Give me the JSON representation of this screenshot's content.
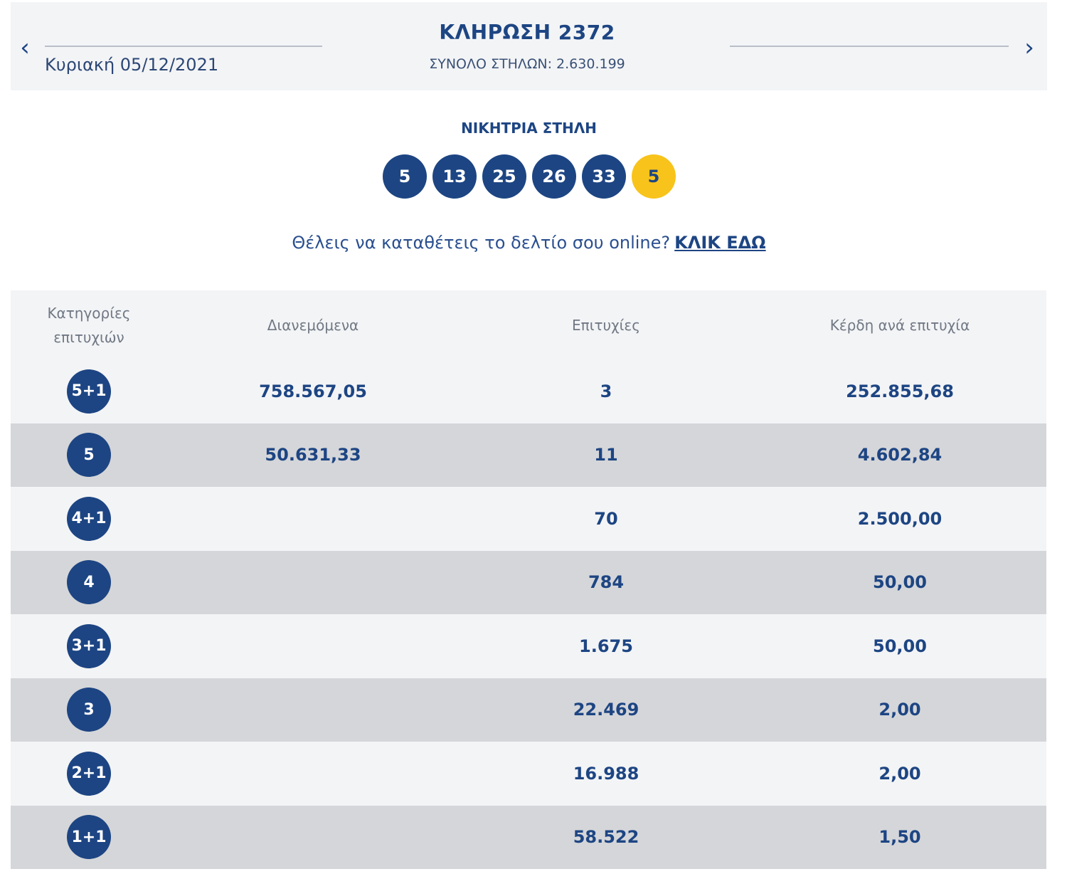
{
  "header": {
    "prev_icon": "‹",
    "next_icon": "›",
    "title": "ΚΛΗΡΩΣΗ 2372",
    "date": "Κυριακή 05/12/2021",
    "total_columns": "ΣΥΝΟΛΟ ΣΤΗΛΩΝ: 2.630.199"
  },
  "winning": {
    "title": "ΝΙΚΗΤΡΙΑ ΣΤΗΛΗ",
    "numbers": [
      "5",
      "13",
      "25",
      "26",
      "33"
    ],
    "joker": "5",
    "joker_color": "#f8c31b",
    "ball_color": "#1d4583"
  },
  "online": {
    "text": "Θέλεις να καταθέτεις το δελτίο σου online?",
    "link": "ΚΛΙΚ ΕΔΩ"
  },
  "table": {
    "headers": [
      "Κατηγορίες επιτυχιών",
      "Διανεμόμενα",
      "Επιτυχίες",
      "Κέρδη ανά επιτυχία"
    ],
    "rows": [
      {
        "category": "5+1",
        "distributed": "758.567,05",
        "winners": "3",
        "prize": "252.855,68"
      },
      {
        "category": "5",
        "distributed": "50.631,33",
        "winners": "11",
        "prize": "4.602,84"
      },
      {
        "category": "4+1",
        "distributed": "",
        "winners": "70",
        "prize": "2.500,00"
      },
      {
        "category": "4",
        "distributed": "",
        "winners": "784",
        "prize": "50,00"
      },
      {
        "category": "3+1",
        "distributed": "",
        "winners": "1.675",
        "prize": "50,00"
      },
      {
        "category": "3",
        "distributed": "",
        "winners": "22.469",
        "prize": "2,00"
      },
      {
        "category": "2+1",
        "distributed": "",
        "winners": "16.988",
        "prize": "2,00"
      },
      {
        "category": "1+1",
        "distributed": "",
        "winners": "58.522",
        "prize": "1,50"
      }
    ]
  }
}
